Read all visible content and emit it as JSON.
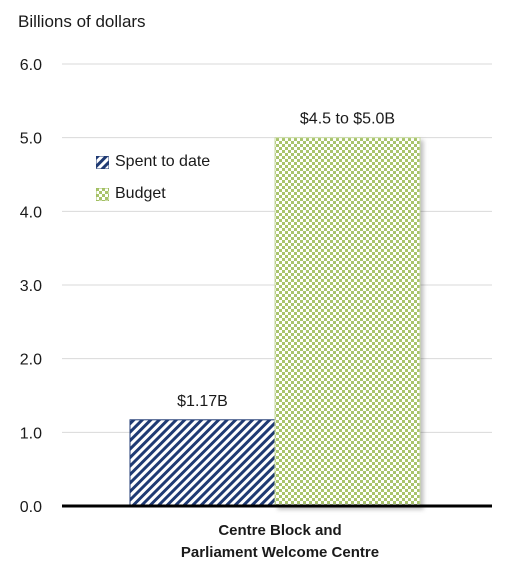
{
  "chart_data": {
    "type": "bar",
    "ylabel": "Billions of dollars",
    "ylim": [
      0,
      6.0
    ],
    "yticks": [
      "0.0",
      "1.0",
      "2.0",
      "3.0",
      "4.0",
      "5.0",
      "6.0"
    ],
    "categories": [
      "Centre Block and Parliament Welcome Centre"
    ],
    "category_lines": [
      "Centre Block and",
      "Parliament Welcome Centre"
    ],
    "series": [
      {
        "name": "Spent to date",
        "values": [
          1.17
        ],
        "label": "$1.17B",
        "color": "#1f3a73",
        "pattern": "diagonal-hatch"
      },
      {
        "name": "Budget",
        "values": [
          5.0
        ],
        "label": "$4.5 to $5.0B",
        "color": "#9bbb59",
        "pattern": "checker"
      }
    ],
    "grid": true,
    "legend": "inside-top-left"
  }
}
